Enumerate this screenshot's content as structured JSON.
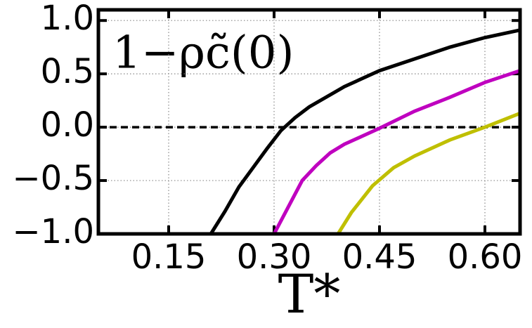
{
  "chart_data": {
    "type": "line",
    "annotation": "1−ρc̃(0)",
    "xlabel": "T*",
    "xlim": [
      0.05,
      0.65
    ],
    "ylim": [
      -1.0,
      1.1
    ],
    "xticks": [
      0.15,
      {
        "value": 0.3,
        "label": "0.30"
      },
      0.45,
      {
        "value": 0.6,
        "label": "0.60"
      }
    ],
    "yticks": [
      {
        "value": 1,
        "label": "1.0"
      },
      0.5,
      {
        "value": 0,
        "label": "0.0"
      },
      {
        "value": -0.5,
        "label": "−0.5"
      },
      {
        "value": -1,
        "label": "−1.0"
      }
    ],
    "grid": true,
    "hline": 0,
    "series": [
      {
        "color": "#000000",
        "x": [
          0.21,
          0.23,
          0.25,
          0.27,
          0.29,
          0.31,
          0.33,
          0.35,
          0.4,
          0.45,
          0.5,
          0.55,
          0.6,
          0.65
        ],
        "values": [
          -1.0,
          -0.79,
          -0.56,
          -0.38,
          -0.2,
          -0.03,
          0.09,
          0.19,
          0.38,
          0.53,
          0.64,
          0.75,
          0.84,
          0.91
        ]
      },
      {
        "color": "#bf00bf",
        "x": [
          0.3,
          0.32,
          0.34,
          0.36,
          0.38,
          0.4,
          0.45,
          0.5,
          0.55,
          0.6,
          0.65
        ],
        "values": [
          -1.0,
          -0.75,
          -0.5,
          -0.36,
          -0.24,
          -0.16,
          -0.01,
          0.15,
          0.28,
          0.42,
          0.53
        ]
      },
      {
        "color": "#bfbf00",
        "x": [
          0.391,
          0.41,
          0.44,
          0.47,
          0.5,
          0.55,
          0.6,
          0.65
        ],
        "values": [
          -1.0,
          -0.8,
          -0.55,
          -0.38,
          -0.27,
          -0.12,
          0.0,
          0.13
        ]
      }
    ]
  }
}
